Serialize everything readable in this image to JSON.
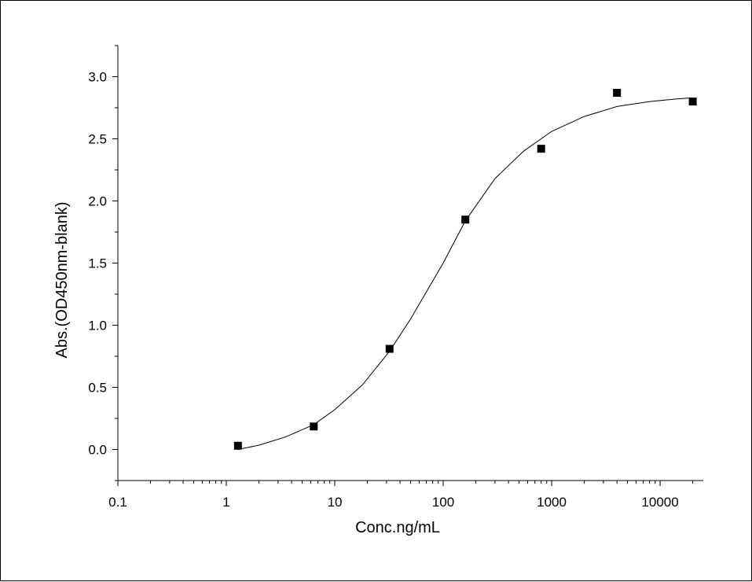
{
  "chart_data": {
    "type": "scatter",
    "xlabel": "Conc.ng/mL",
    "ylabel": "Abs.(OD450nm-blank)",
    "xscale": "log",
    "xlim": [
      0.1,
      25000
    ],
    "ylim": [
      -0.25,
      3.25
    ],
    "x_ticks": [
      0.1,
      1,
      10,
      100,
      1000,
      10000
    ],
    "x_tick_labels": [
      "0.1",
      "1",
      "10",
      "100",
      "1000",
      "10000"
    ],
    "y_ticks": [
      0,
      0.5,
      1,
      1.5,
      2,
      2.5,
      3
    ],
    "y_tick_labels": [
      "0.0",
      "0.5",
      "1.0",
      "1.5",
      "2.0",
      "2.5",
      "3.0"
    ],
    "grid": false,
    "series": [
      {
        "marker": "square",
        "color": "#000000",
        "x": [
          1.28,
          6.4,
          32,
          160,
          800,
          4000,
          20000
        ],
        "y": [
          0.03,
          0.185,
          0.81,
          1.85,
          2.42,
          2.87,
          2.8
        ]
      },
      {
        "kind": "fitted-curve",
        "color": "#000000",
        "x": [
          1.28,
          2,
          3.5,
          6.4,
          10,
          18,
          32,
          50,
          100,
          160,
          300,
          550,
          1000,
          2000,
          4000,
          8000,
          14000,
          20000
        ],
        "y": [
          0.0,
          0.035,
          0.1,
          0.2,
          0.32,
          0.52,
          0.79,
          1.05,
          1.5,
          1.84,
          2.18,
          2.4,
          2.56,
          2.68,
          2.76,
          2.8,
          2.82,
          2.83
        ]
      }
    ]
  }
}
